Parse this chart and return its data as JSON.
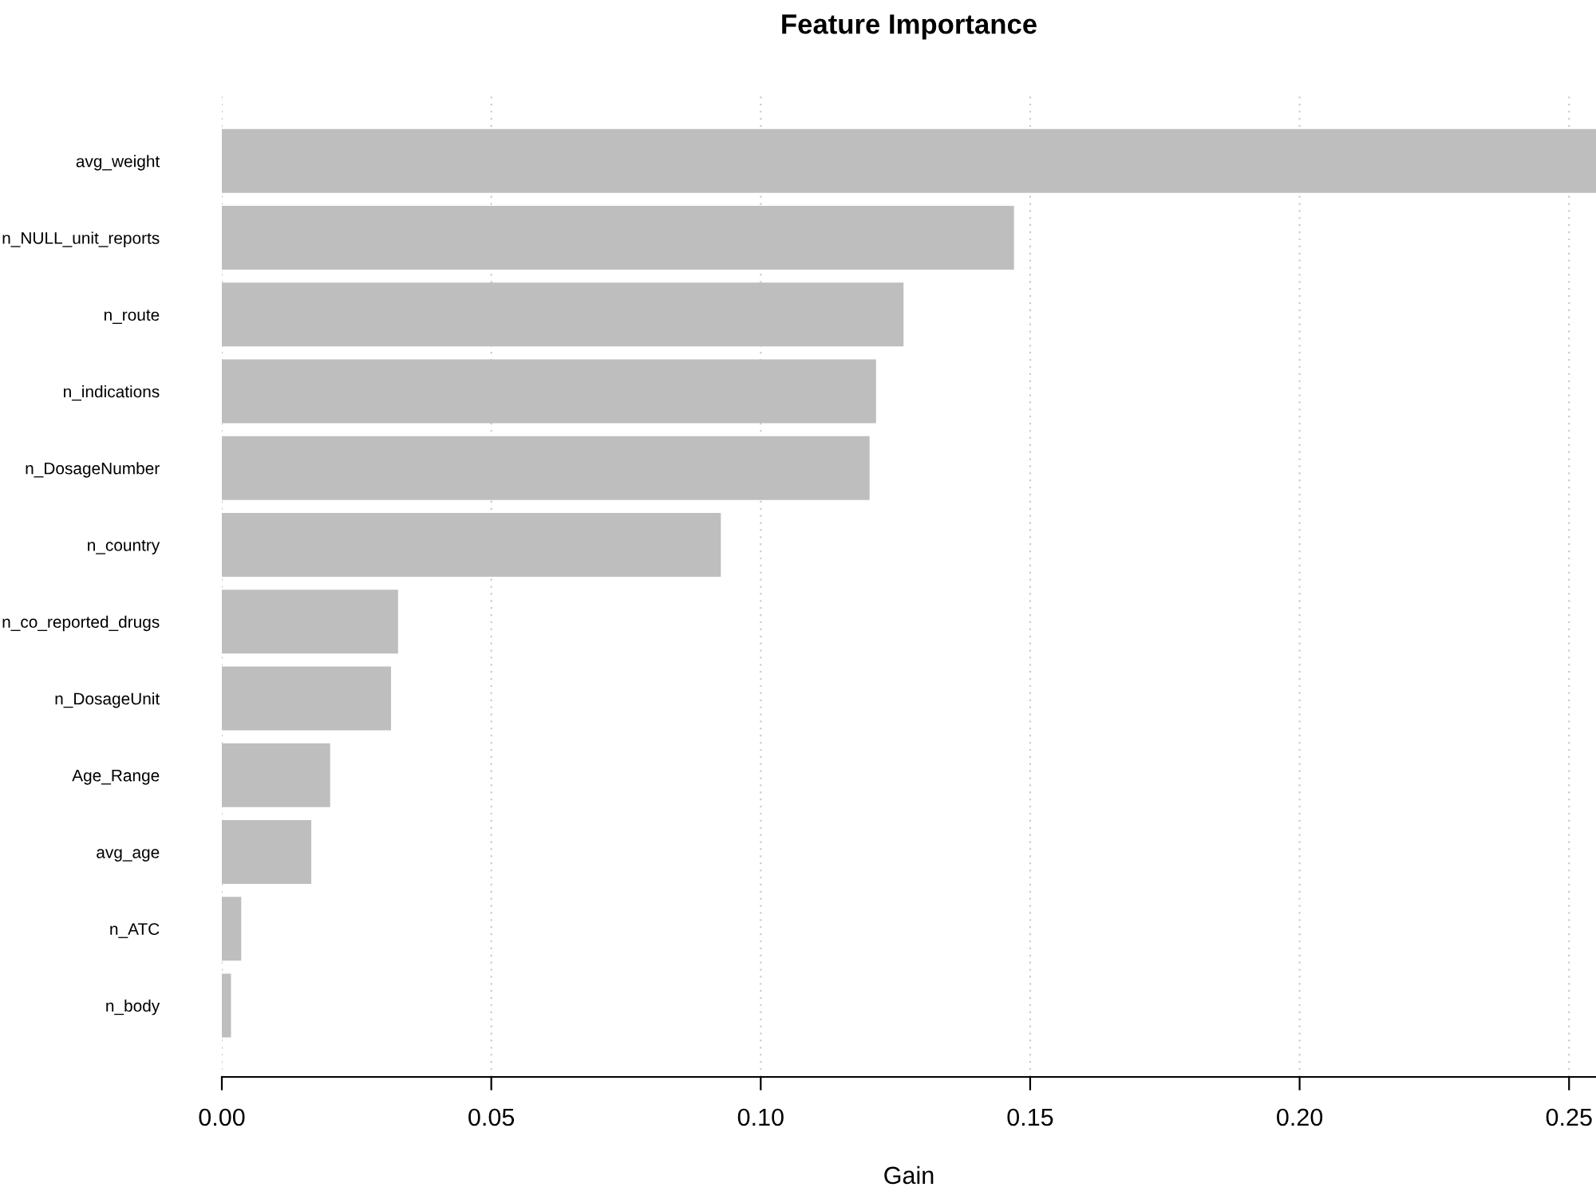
{
  "chart_data": {
    "type": "bar",
    "orientation": "horizontal",
    "title": "Feature Importance",
    "xlabel": "Gain",
    "categories": [
      "avg_weight",
      "n_NULL_unit_reports",
      "n_route",
      "n_indications",
      "n_DosageNumber",
      "n_country",
      "n_co_reported_drugs",
      "n_DosageUnit",
      "Age_Range",
      "avg_age",
      "n_ATC",
      "n_body"
    ],
    "values": [
      0.255,
      0.147,
      0.1265,
      0.1214,
      0.1202,
      0.0926,
      0.0327,
      0.0314,
      0.0201,
      0.0166,
      0.0036,
      0.0017
    ],
    "color": "#bebebe",
    "xlim": [
      0,
      0.255
    ],
    "xticks": [
      {
        "value": 0,
        "label": "0.00"
      },
      {
        "value": 0.05,
        "label": "0.05"
      },
      {
        "value": 0.1,
        "label": "0.10"
      },
      {
        "value": 0.15,
        "label": "0.15"
      },
      {
        "value": 0.2,
        "label": "0.20"
      },
      {
        "value": 0.25,
        "label": "0.25"
      }
    ],
    "grid": "x"
  }
}
